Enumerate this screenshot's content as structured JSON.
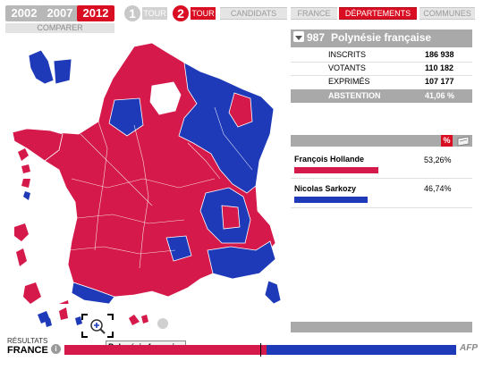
{
  "years": [
    "2002",
    "2007",
    "2012"
  ],
  "active_year": "2012",
  "compare_label": "COMPARER",
  "rounds": [
    {
      "number": "1",
      "label": "TOUR"
    },
    {
      "number": "2",
      "label": "TOUR"
    }
  ],
  "nav_tabs": [
    "CANDIDATS",
    "FRANCE",
    "DÉPARTEMENTS",
    "COMMUNES"
  ],
  "active_tab": "DÉPARTEMENTS",
  "territory": {
    "code": "987",
    "name": "Polynésie française"
  },
  "stats": [
    {
      "label": "INSCRITS",
      "value": "186 938"
    },
    {
      "label": "VOTANTS",
      "value": "110 182"
    },
    {
      "label": "EXPRIMÉS",
      "value": "107 177"
    },
    {
      "label": "ABSTENTION",
      "value": "41,06 %"
    }
  ],
  "candidates": [
    {
      "name": "François Hollande",
      "percent": "53,26%",
      "color": "#d5194a",
      "share": 0.5326
    },
    {
      "name": "Nicolas Sarkozy",
      "percent": "46,74%",
      "color": "#1e3ab8",
      "share": 0.4674
    }
  ],
  "footer": {
    "results_label": "RÉSULTATS",
    "scope_label": "FRANCE",
    "tooltip": "Polynésie française",
    "logo": "AFP",
    "national_bar": {
      "left_share": 0.516,
      "left_color": "#d5194a",
      "right_color": "#1e3ab8"
    }
  },
  "colors": {
    "red": "#d5194a",
    "blue": "#1e3ab8",
    "accent": "#d90e22",
    "grey": "#a9a9a9"
  },
  "icons": [
    "info-icon",
    "magnifier-icon",
    "dropdown-icon",
    "percent-icon",
    "ballot-icon"
  ]
}
